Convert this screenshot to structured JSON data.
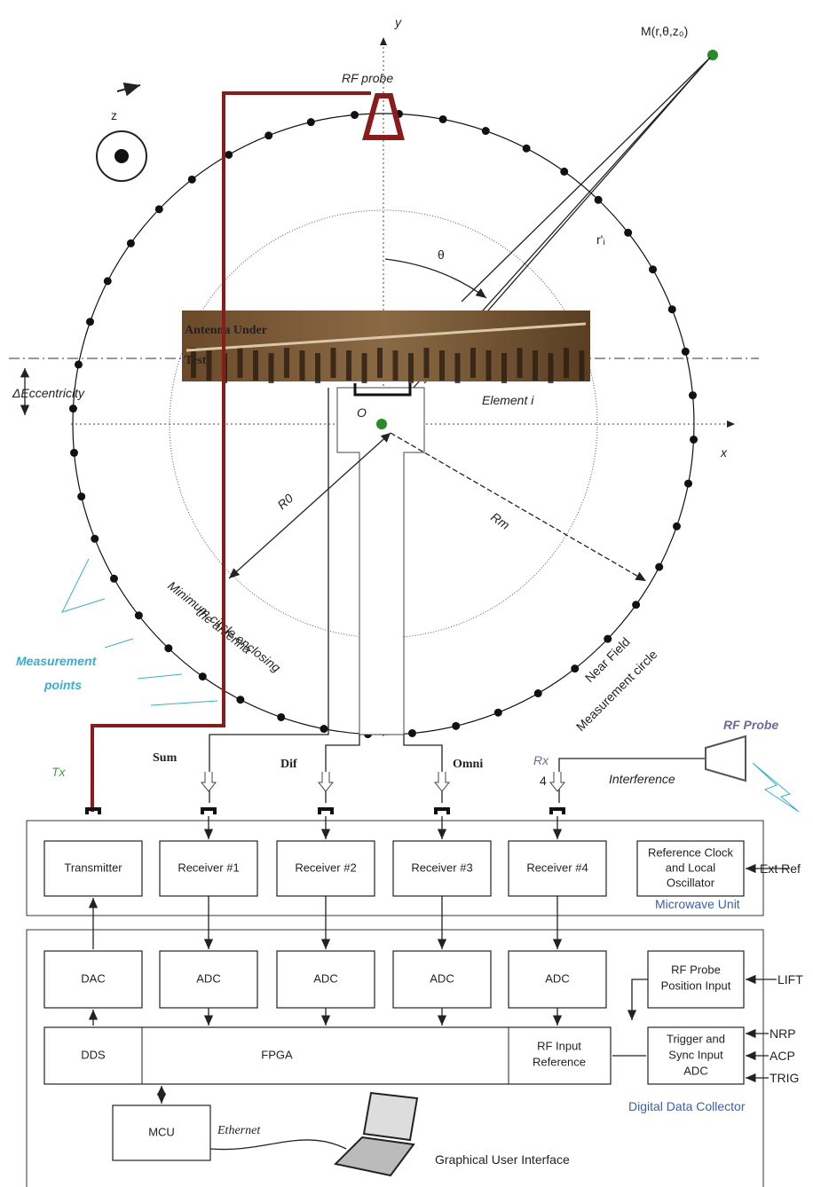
{
  "axes": {
    "y": "y",
    "x": "x",
    "z": "z"
  },
  "point_m": "M(r,θ,z₀)",
  "angle": "θ",
  "distance": "r'ᵢ",
  "probe_top": "RF probe",
  "antenna": [
    "Antenna Under",
    "Test"
  ],
  "eccentricity": "ΔEccentricity",
  "element": "Element i",
  "origin": "O",
  "r0": "R0",
  "rm": "Rm",
  "min_circle": [
    "Minimum circle enclosing",
    "the antenna"
  ],
  "nf_circle": [
    "Near Field",
    "Measurement circle"
  ],
  "measurement_points": [
    "Measurement",
    "points"
  ],
  "ports": {
    "tx": "Tx",
    "sum": "Sum",
    "dif": "Dif",
    "omni": "Omni",
    "rx": "Rx",
    "rx_num": "4"
  },
  "interference_probe": "RF Probe",
  "interference": "Interference",
  "microwave_unit": {
    "label": "Microwave Unit",
    "blocks": [
      "Transmitter",
      "Receiver #1",
      "Receiver #2",
      "Receiver #3",
      "Receiver #4"
    ],
    "ref_clock": [
      "Reference Clock",
      "and Local",
      "Oscillator"
    ],
    "ext_ref": "Ext Ref"
  },
  "digital": {
    "label": "Digital Data Collector",
    "converters": [
      "DAC",
      "ADC",
      "ADC",
      "ADC",
      "ADC"
    ],
    "probe_pos": [
      "RF Probe",
      "Position Input"
    ],
    "lift": "LIFT",
    "dds": "DDS",
    "fpga": "FPGA",
    "rf_ref": [
      "RF Input",
      "Reference"
    ],
    "trigger": [
      "Trigger and",
      "Sync Input",
      "ADC"
    ],
    "inputs": [
      "NRP",
      "ACP",
      "TRIG"
    ],
    "mcu": "MCU",
    "ethernet": "Ethernet",
    "gui": "Graphical User Interface"
  }
}
